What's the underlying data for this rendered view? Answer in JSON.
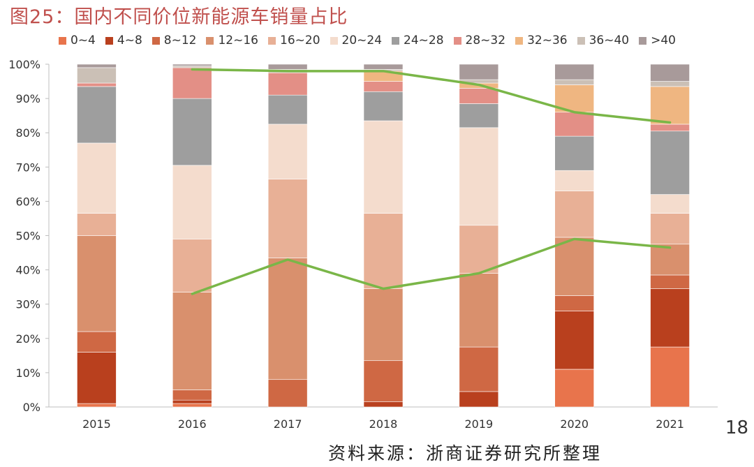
{
  "title": "图25：国内不同价位新能源车销量占比",
  "source": "资料来源：浙商证券研究所整理",
  "page_number": "18",
  "chart_data": {
    "type": "bar",
    "stacked": true,
    "title": "图25：国内不同价位新能源车销量占比",
    "xlabel": "",
    "ylabel": "",
    "categories": [
      "2015",
      "2016",
      "2017",
      "2018",
      "2019",
      "2020",
      "2021"
    ],
    "ylim": [
      0,
      100
    ],
    "yticks": [
      "0%",
      "10%",
      "20%",
      "30%",
      "40%",
      "50%",
      "60%",
      "70%",
      "80%",
      "90%",
      "100%"
    ],
    "legend_position": "top",
    "grid": false,
    "series": [
      {
        "name": "0~4",
        "color": "#e8744c",
        "values": [
          1,
          1,
          0,
          0,
          0,
          11,
          17.5
        ]
      },
      {
        "name": "4~8",
        "color": "#b9401e",
        "values": [
          15,
          1,
          0,
          1.5,
          4.5,
          17,
          17
        ]
      },
      {
        "name": "8~12",
        "color": "#cf6844",
        "values": [
          6,
          3,
          8,
          12,
          13,
          4.5,
          4
        ]
      },
      {
        "name": "12~16",
        "color": "#d9906d",
        "values": [
          28,
          28.5,
          35.5,
          21,
          21.5,
          17,
          9
        ]
      },
      {
        "name": "16~20",
        "color": "#e8b096",
        "values": [
          6.5,
          15.5,
          23,
          22,
          14,
          13.5,
          9
        ]
      },
      {
        "name": "20~24",
        "color": "#f4dccd",
        "values": [
          20.5,
          21.5,
          16,
          27,
          28.5,
          6,
          5.5
        ]
      },
      {
        "name": "24~28",
        "color": "#9e9e9e",
        "values": [
          16.5,
          19.5,
          8.5,
          8.5,
          7,
          10,
          18.5
        ]
      },
      {
        "name": "28~32",
        "color": "#e38f86",
        "values": [
          1,
          9,
          6.5,
          3,
          4.5,
          7,
          2
        ]
      },
      {
        "name": "32~36",
        "color": "#efb681",
        "values": [
          0,
          0,
          0,
          3,
          1.5,
          8,
          11
        ]
      },
      {
        "name": "36~40",
        "color": "#cbc0b6",
        "values": [
          4.5,
          0.5,
          1,
          0.5,
          1,
          1.5,
          1.5
        ]
      },
      {
        "name": ">40",
        "color": "#a89a9a",
        "values": [
          1,
          0.5,
          1.5,
          1.5,
          4.5,
          4.5,
          5
        ]
      }
    ],
    "lines": [
      {
        "color": "#7ab648",
        "x": [
          "2016",
          "2017",
          "2018",
          "2019",
          "2020",
          "2021"
        ],
        "values": [
          98.5,
          98,
          98,
          94,
          86,
          83
        ]
      },
      {
        "color": "#7ab648",
        "x": [
          "2016",
          "2017",
          "2018",
          "2019",
          "2020",
          "2021"
        ],
        "values": [
          33,
          43,
          34.5,
          39,
          49,
          46.5
        ]
      }
    ]
  }
}
